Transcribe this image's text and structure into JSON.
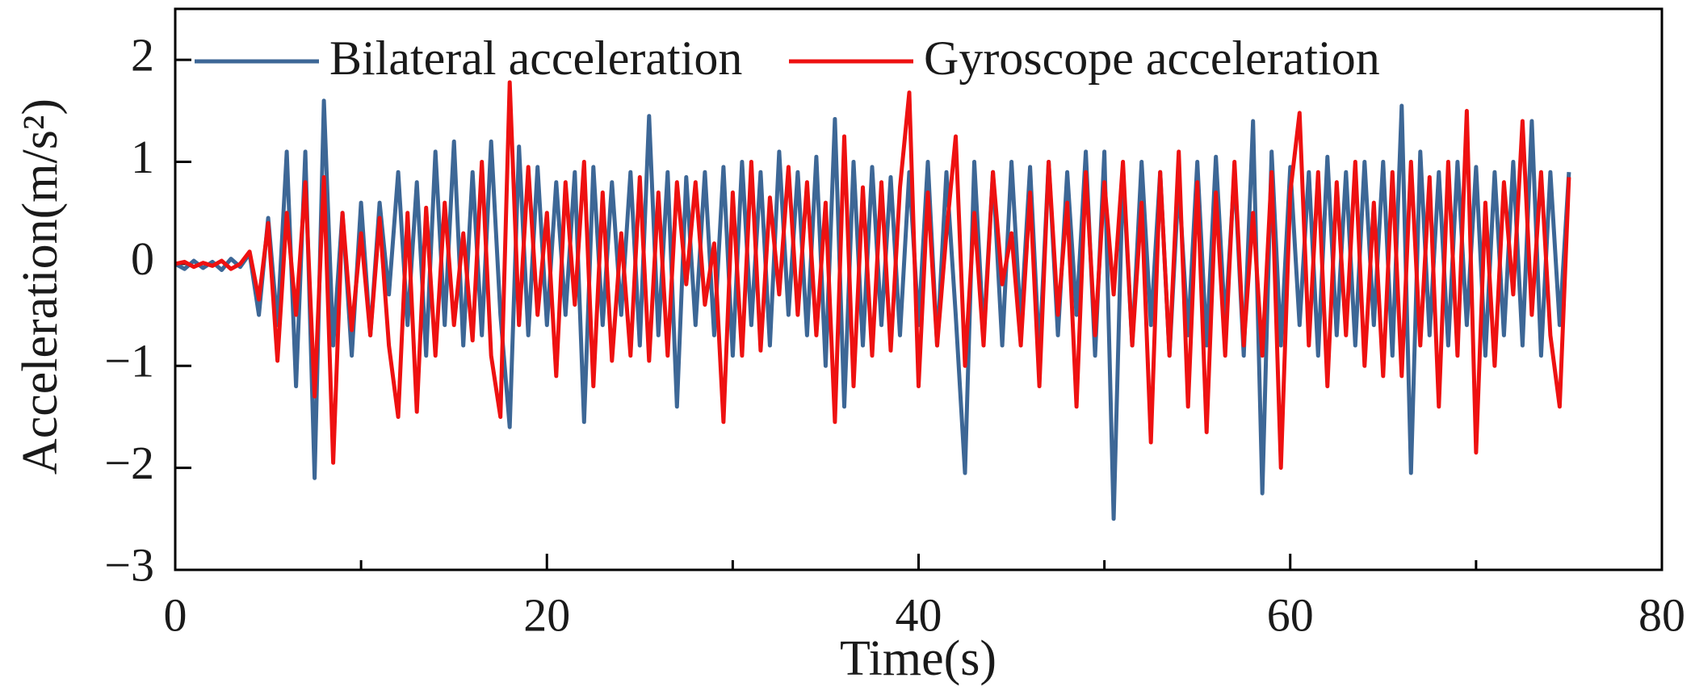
{
  "chart_data": {
    "type": "line",
    "xlabel": "Time(s)",
    "ylabel": "Acceleration(m/s²)",
    "x": [
      0,
      0.5,
      1,
      1.5,
      2,
      2.5,
      3,
      3.5,
      4,
      4.5,
      5,
      5.5,
      6,
      6.5,
      7,
      7.5,
      8,
      8.5,
      9,
      9.5,
      10,
      10.5,
      11,
      11.5,
      12,
      12.5,
      13,
      13.5,
      14,
      14.5,
      15,
      15.5,
      16,
      16.5,
      17,
      17.5,
      18,
      18.5,
      19,
      19.5,
      20,
      20.5,
      21,
      21.5,
      22,
      22.5,
      23,
      23.5,
      24,
      24.5,
      25,
      25.5,
      26,
      26.5,
      27,
      27.5,
      28,
      28.5,
      29,
      29.5,
      30,
      30.5,
      31,
      31.5,
      32,
      32.5,
      33,
      33.5,
      34,
      34.5,
      35,
      35.5,
      36,
      36.5,
      37,
      37.5,
      38,
      38.5,
      39,
      39.5,
      40,
      40.5,
      41,
      41.5,
      42,
      42.5,
      43,
      43.5,
      44,
      44.5,
      45,
      45.5,
      46,
      46.5,
      47,
      47.5,
      48,
      48.5,
      49,
      49.5,
      50,
      50.5,
      51,
      51.5,
      52,
      52.5,
      53,
      53.5,
      54,
      54.5,
      55,
      55.5,
      56,
      56.5,
      57,
      57.5,
      58,
      58.5,
      59,
      59.5,
      60,
      60.5,
      61,
      61.5,
      62,
      62.5,
      63,
      63.5,
      64,
      64.5,
      65,
      65.5,
      66,
      66.5,
      67,
      67.5,
      68,
      68.5,
      69,
      69.5,
      70,
      70.5,
      71,
      71.5,
      72,
      72.5,
      73,
      73.5,
      74,
      74.5,
      75
    ],
    "series": [
      {
        "name": "Bilateral acceleration",
        "color": "#3d6796",
        "values": [
          0,
          -0.05,
          0.03,
          -0.04,
          0.02,
          -0.06,
          0.05,
          -0.03,
          0.1,
          -0.5,
          0.45,
          -0.6,
          1.1,
          -1.2,
          1.1,
          -2.1,
          1.6,
          -0.8,
          0.5,
          -0.9,
          0.6,
          -0.7,
          0.6,
          -0.3,
          0.9,
          -0.6,
          0.8,
          -0.9,
          1.1,
          -0.6,
          1.2,
          -0.8,
          0.9,
          -0.7,
          1.2,
          -0.5,
          -1.6,
          1.15,
          -0.7,
          0.95,
          -0.6,
          0.8,
          -0.5,
          0.9,
          -1.55,
          0.95,
          -0.6,
          0.8,
          -0.5,
          0.9,
          -0.8,
          1.45,
          -0.7,
          0.9,
          -1.4,
          0.85,
          -0.6,
          0.9,
          -0.7,
          0.95,
          -0.9,
          1.0,
          -0.6,
          0.9,
          -0.8,
          1.1,
          -0.5,
          0.9,
          -0.7,
          1.05,
          -1.0,
          1.42,
          -1.4,
          1.0,
          -0.8,
          0.95,
          -0.6,
          0.85,
          -0.7,
          0.9,
          -0.6,
          1.0,
          -0.8,
          0.9,
          -0.5,
          -2.05,
          1.0,
          -0.7,
          0.9,
          -0.8,
          1.0,
          -0.6,
          0.95,
          -0.9,
          1.0,
          -0.7,
          0.9,
          -0.5,
          1.1,
          -0.9,
          1.1,
          -2.5,
          0.9,
          -0.8,
          1.0,
          -0.6,
          0.9,
          -0.9,
          0.8,
          -0.7,
          1.0,
          -0.8,
          1.05,
          -0.6,
          0.9,
          -0.9,
          1.4,
          -2.25,
          1.1,
          -0.8,
          0.95,
          -0.6,
          0.9,
          -0.9,
          1.05,
          -0.7,
          0.9,
          -0.8,
          1.0,
          -0.6,
          1.0,
          -0.9,
          1.55,
          -2.05,
          1.1,
          -0.7,
          0.9,
          -0.8,
          1.0,
          -0.6,
          0.95,
          -0.9,
          0.9,
          -0.7,
          1.0,
          -0.8,
          1.4,
          -0.9,
          0.9,
          -0.6,
          0.9
        ]
      },
      {
        "name": "Gyroscope acceleration",
        "color": "#ee1111",
        "values": [
          0,
          0.02,
          -0.03,
          0.01,
          -0.02,
          0.03,
          -0.05,
          0.0,
          0.12,
          -0.35,
          0.4,
          -0.95,
          0.5,
          -0.5,
          0.8,
          -1.3,
          0.85,
          -1.95,
          0.5,
          -0.65,
          0.3,
          -0.7,
          0.45,
          -0.8,
          -1.5,
          0.5,
          -1.45,
          0.55,
          -0.9,
          0.6,
          -0.6,
          0.3,
          -0.75,
          1.0,
          -0.9,
          -1.5,
          1.78,
          -0.6,
          0.95,
          -0.5,
          0.5,
          -1.1,
          0.8,
          -0.4,
          1.0,
          -1.2,
          0.7,
          -0.95,
          0.3,
          -0.9,
          0.85,
          -0.95,
          0.7,
          -0.9,
          0.8,
          -0.2,
          0.8,
          -0.4,
          0.2,
          -1.55,
          0.7,
          -0.9,
          1.0,
          -0.85,
          0.65,
          -0.3,
          0.95,
          -0.5,
          0.8,
          -0.7,
          0.6,
          -1.55,
          1.25,
          -1.2,
          0.75,
          -0.9,
          0.8,
          -0.85,
          0.75,
          1.68,
          -1.2,
          0.7,
          -0.8,
          0.3,
          1.25,
          -1.0,
          0.5,
          -0.8,
          0.9,
          -0.2,
          0.3,
          -0.8,
          0.7,
          -1.2,
          1.0,
          -0.5,
          0.6,
          -1.4,
          0.9,
          -0.7,
          0.8,
          -0.3,
          1.0,
          -0.8,
          0.6,
          -1.75,
          0.9,
          -0.9,
          1.1,
          -1.4,
          0.8,
          -1.65,
          0.7,
          -0.9,
          1.0,
          -0.8,
          0.5,
          -0.9,
          0.9,
          -2.0,
          0.7,
          1.48,
          -0.8,
          0.9,
          -1.2,
          0.8,
          -0.7,
          1.0,
          -1.0,
          0.6,
          -1.1,
          0.9,
          -1.1,
          1.0,
          -0.8,
          0.85,
          -1.4,
          1.0,
          -0.9,
          1.5,
          -1.85,
          0.6,
          -1.0,
          0.8,
          -0.3,
          1.4,
          -0.5,
          0.9,
          -0.7,
          -1.4,
          0.85
        ]
      }
    ],
    "xlim": [
      0,
      80
    ],
    "xticks": [
      0,
      20,
      40,
      60,
      80
    ],
    "xminorticks": [
      10,
      30,
      50,
      70
    ],
    "ylim": [
      -3,
      2.5
    ],
    "yticks": [
      {
        "value": -3,
        "label": "−3"
      },
      {
        "value": -2,
        "label": "−2"
      },
      {
        "value": -1,
        "label": "−1"
      },
      0,
      1,
      2
    ],
    "legend": "upper left"
  }
}
